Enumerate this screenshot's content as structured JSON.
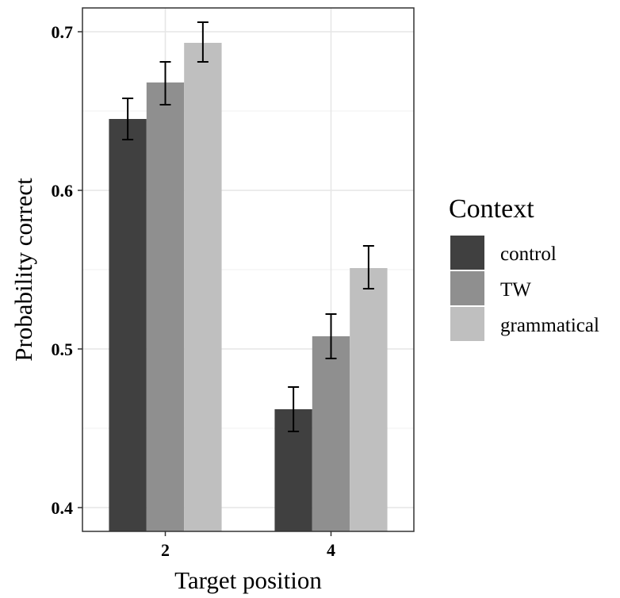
{
  "chart_data": {
    "type": "bar",
    "title": "",
    "xlabel": "Target position",
    "ylabel": "Probability correct",
    "categories": [
      "2",
      "4"
    ],
    "ylim": [
      0.385,
      0.715
    ],
    "yticks": [
      "0.4",
      "0.5",
      "0.6",
      "0.7"
    ],
    "grid": true,
    "legend": {
      "title": "Context",
      "placement": "right"
    },
    "series": [
      {
        "name": "control",
        "color": "#404040",
        "values": [
          0.645,
          0.462
        ],
        "error_low": [
          0.632,
          0.448
        ],
        "error_high": [
          0.658,
          0.476
        ]
      },
      {
        "name": "TW",
        "color": "#8f8f8f",
        "values": [
          0.668,
          0.508
        ],
        "error_low": [
          0.654,
          0.494
        ],
        "error_high": [
          0.681,
          0.522
        ]
      },
      {
        "name": "grammatical",
        "color": "#bfbfbf",
        "values": [
          0.693,
          0.551
        ],
        "error_low": [
          0.681,
          0.538
        ],
        "error_high": [
          0.706,
          0.565
        ]
      }
    ]
  }
}
